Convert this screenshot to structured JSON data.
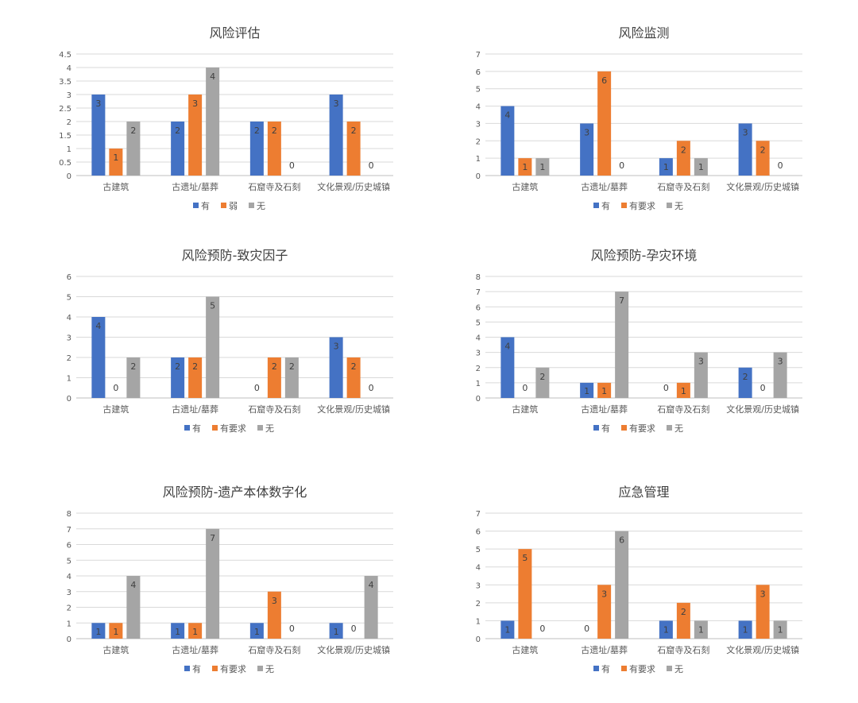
{
  "chart_data": [
    {
      "type": "bar",
      "title": "风险评估",
      "categories": [
        "古建筑",
        "古遗址/墓葬",
        "石窟寺及石刻",
        "文化景观/历史城镇"
      ],
      "series": [
        {
          "name": "有",
          "values": [
            3,
            2,
            2,
            3
          ]
        },
        {
          "name": "弱",
          "values": [
            1,
            3,
            2,
            2
          ]
        },
        {
          "name": "无",
          "values": [
            2,
            4,
            0,
            0
          ]
        }
      ],
      "ylim": [
        0,
        4.5
      ],
      "yticks": [
        "0",
        "0.5",
        "1",
        "1.5",
        "2",
        "2.5",
        "3",
        "3.5",
        "4",
        "4.5"
      ],
      "grid": true,
      "legend": "bottom"
    },
    {
      "type": "bar",
      "title": "风险监测",
      "categories": [
        "古建筑",
        "古遗址/墓葬",
        "石窟寺及石刻",
        "文化景观/历史城镇"
      ],
      "series": [
        {
          "name": "有",
          "values": [
            4,
            3,
            1,
            3
          ]
        },
        {
          "name": "有要求",
          "values": [
            1,
            6,
            2,
            2
          ]
        },
        {
          "name": "无",
          "values": [
            1,
            0,
            1,
            0
          ]
        }
      ],
      "ylim": [
        0,
        7
      ],
      "yticks": [
        "0",
        "1",
        "2",
        "3",
        "4",
        "5",
        "6",
        "7"
      ],
      "grid": true,
      "legend": "bottom"
    },
    {
      "type": "bar",
      "title": "风险预防-致灾因子",
      "categories": [
        "古建筑",
        "古遗址/墓葬",
        "石窟寺及石刻",
        "文化景观/历史城镇"
      ],
      "series": [
        {
          "name": "有",
          "values": [
            4,
            2,
            0,
            3
          ]
        },
        {
          "name": "有要求",
          "values": [
            0,
            2,
            2,
            2
          ]
        },
        {
          "name": "无",
          "values": [
            2,
            5,
            2,
            0
          ]
        }
      ],
      "ylim": [
        0,
        6
      ],
      "yticks": [
        "0",
        "1",
        "2",
        "3",
        "4",
        "5",
        "6"
      ],
      "grid": true,
      "legend": "bottom"
    },
    {
      "type": "bar",
      "title": "风险预防-孕灾环境",
      "categories": [
        "古建筑",
        "古遗址/墓葬",
        "石窟寺及石刻",
        "文化景观/历史城镇"
      ],
      "series": [
        {
          "name": "有",
          "values": [
            4,
            1,
            0,
            2
          ]
        },
        {
          "name": "有要求",
          "values": [
            0,
            1,
            1,
            0
          ]
        },
        {
          "name": "无",
          "values": [
            2,
            7,
            3,
            3
          ]
        }
      ],
      "ylim": [
        0,
        8
      ],
      "yticks": [
        "0",
        "1",
        "2",
        "3",
        "4",
        "5",
        "6",
        "7",
        "8"
      ],
      "grid": true,
      "legend": "bottom"
    },
    {
      "type": "bar",
      "title": "风险预防-遗产本体数字化",
      "categories": [
        "古建筑",
        "古遗址/墓葬",
        "石窟寺及石刻",
        "文化景观/历史城镇"
      ],
      "series": [
        {
          "name": "有",
          "values": [
            1,
            1,
            1,
            1
          ]
        },
        {
          "name": "有要求",
          "values": [
            1,
            1,
            3,
            0
          ]
        },
        {
          "name": "无",
          "values": [
            4,
            7,
            0,
            4
          ]
        }
      ],
      "ylim": [
        0,
        8
      ],
      "yticks": [
        "0",
        "1",
        "2",
        "3",
        "4",
        "5",
        "6",
        "7",
        "8"
      ],
      "grid": true,
      "legend": "bottom"
    },
    {
      "type": "bar",
      "title": "应急管理",
      "categories": [
        "古建筑",
        "古遗址/墓葬",
        "石窟寺及石刻",
        "文化景观/历史城镇"
      ],
      "series": [
        {
          "name": "有",
          "values": [
            1,
            0,
            1,
            1
          ]
        },
        {
          "name": "有要求",
          "values": [
            5,
            3,
            2,
            3
          ]
        },
        {
          "name": "无",
          "values": [
            0,
            6,
            1,
            1
          ]
        }
      ],
      "ylim": [
        0,
        7
      ],
      "yticks": [
        "0",
        "1",
        "2",
        "3",
        "4",
        "5",
        "6",
        "7"
      ],
      "grid": true,
      "legend": "bottom"
    }
  ],
  "colors": {
    "series": [
      "#4472c4",
      "#ed7d31",
      "#a5a5a5"
    ],
    "grid": "#d9d9d9",
    "axis": "#bfbfbf",
    "text": "#595959",
    "title": "#404040",
    "label": "#404040"
  }
}
